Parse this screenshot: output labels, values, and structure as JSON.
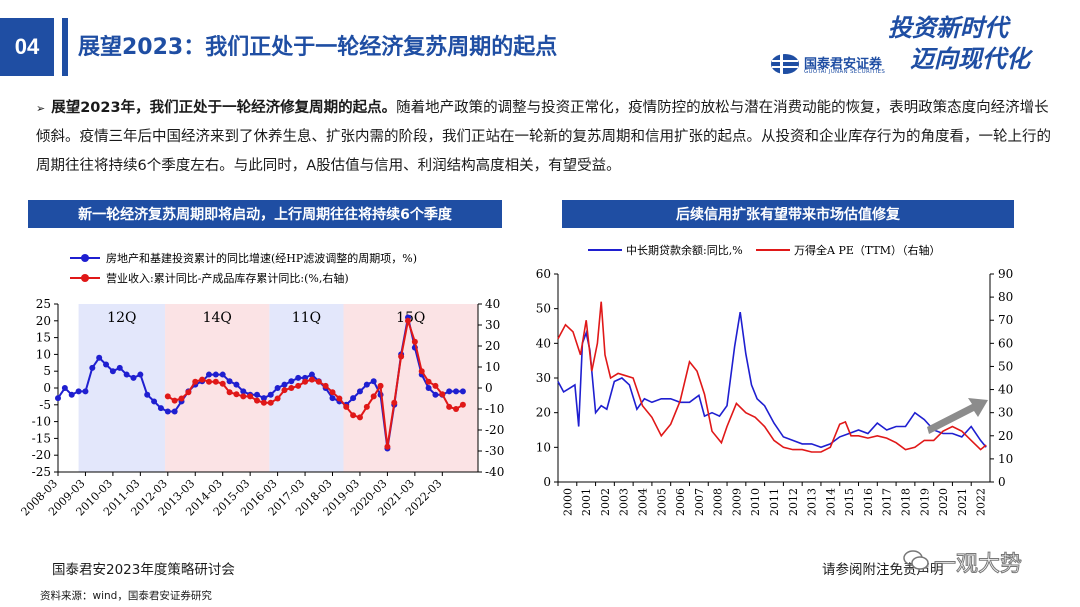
{
  "header": {
    "page_number": "04",
    "title": "展望2023：我们正处于一轮经济复苏周期的起点",
    "brand_cn": "国泰君安证券",
    "brand_en": "GUOTAI JUNAN SECURITIES",
    "slogan_line1": "投资新时代",
    "slogan_line2": "迈向现代化"
  },
  "body": {
    "bullet": "➢",
    "lead": "展望2023年，我们正处于一轮经济修复周期的起点。",
    "text": "随着地产政策的调整与投资正常化，疫情防控的放松与潜在消费动能的恢复，表明政策态度向经济增长倾斜。疫情三年后中国经济来到了休养生息、扩张内需的阶段，我们正站在一轮新的复苏周期和信用扩张的起点。从投资和企业库存行为的角度看，一轮上行的周期往往将持续6个季度左右。与此同时，A股估值与信用、利润结构高度相关，有望受益。"
  },
  "left_panel": {
    "banner": "新一轮经济复苏周期即将启动，上行周期往往将持续6个季度"
  },
  "right_panel": {
    "banner": "后续信用扩张有望带来市场估值修复"
  },
  "footer": {
    "event": "国泰君安2023年度策略研讨会",
    "source": "资料来源：wind，国泰君安证券研究",
    "disclaimer": "请参阅附注免责声明",
    "watermark": "一观大势"
  },
  "colors": {
    "brand": "#1f4ea3",
    "series_blue": "#1f1fd0",
    "series_red": "#e01818",
    "shade_blue": "#e3e7fb",
    "shade_red": "#fbe3e5"
  },
  "chart_data": [
    {
      "type": "line",
      "title": "新一轮经济复苏周期即将启动，上行周期往往将持续6个季度",
      "x_ticks": [
        "2008-03",
        "2009-03",
        "2010-03",
        "2011-03",
        "2012-03",
        "2013-03",
        "2014-03",
        "2015-03",
        "2016-03",
        "2017-03",
        "2018-03",
        "2019-03",
        "2020-03",
        "2021-03",
        "2022-03"
      ],
      "x_range": [
        2008.0,
        2023.3
      ],
      "ylim_left": [
        -25,
        25
      ],
      "yticks_left": [
        -25,
        -20,
        -15,
        -10,
        -5,
        0,
        5,
        10,
        15,
        20,
        25
      ],
      "ylim_right": [
        -40,
        40
      ],
      "yticks_right": [
        -40,
        -30,
        -20,
        -10,
        0,
        10,
        20,
        30,
        40
      ],
      "shaded_periods": [
        {
          "start": 2008.75,
          "end": 2011.9,
          "color": "blue",
          "label": "12Q"
        },
        {
          "start": 2011.9,
          "end": 2015.7,
          "color": "red",
          "label": "14Q"
        },
        {
          "start": 2015.7,
          "end": 2018.4,
          "color": "blue",
          "label": "11Q"
        },
        {
          "start": 2018.4,
          "end": 2023.3,
          "color": "red",
          "label": "15Q"
        }
      ],
      "series": [
        {
          "name": "房地产和基建投资累计的同比增速(经HP滤波调整的周期项，%)",
          "axis": "left",
          "color": "blue",
          "x": [
            2008.0,
            2008.25,
            2008.5,
            2008.75,
            2009.0,
            2009.25,
            2009.5,
            2009.75,
            2010.0,
            2010.25,
            2010.5,
            2010.75,
            2011.0,
            2011.25,
            2011.5,
            2011.75,
            2012.0,
            2012.25,
            2012.5,
            2012.75,
            2013.0,
            2013.25,
            2013.5,
            2013.75,
            2014.0,
            2014.25,
            2014.5,
            2014.75,
            2015.0,
            2015.25,
            2015.5,
            2015.75,
            2016.0,
            2016.25,
            2016.5,
            2016.75,
            2017.0,
            2017.25,
            2017.5,
            2017.75,
            2018.0,
            2018.25,
            2018.5,
            2018.75,
            2019.0,
            2019.25,
            2019.5,
            2019.75,
            2020.0,
            2020.25,
            2020.5,
            2020.75,
            2021.0,
            2021.25,
            2021.5,
            2021.75,
            2022.0,
            2022.25,
            2022.5,
            2022.75
          ],
          "values": [
            -3,
            0,
            -2,
            -1,
            -1,
            6,
            9,
            7,
            5,
            6,
            4,
            3,
            4,
            -2,
            -4,
            -6,
            -7,
            -7,
            -4,
            -1,
            1,
            2,
            4,
            4,
            4,
            2,
            1,
            -1,
            -2,
            -2,
            -3,
            -2,
            0,
            1,
            2,
            3,
            3,
            4,
            2,
            0,
            -3,
            -4,
            -5,
            -3,
            -1,
            1,
            2,
            -2,
            -18,
            -5,
            10,
            21,
            12,
            4,
            0,
            -2,
            -2,
            -1,
            -1,
            -1
          ]
        },
        {
          "name": "营业收入:累计同比-产成品库存累计同比:(%,右轴)",
          "axis": "right",
          "color": "red",
          "x": [
            2012.0,
            2012.25,
            2012.5,
            2012.75,
            2013.0,
            2013.25,
            2013.5,
            2013.75,
            2014.0,
            2014.25,
            2014.5,
            2014.75,
            2015.0,
            2015.25,
            2015.5,
            2015.75,
            2016.0,
            2016.25,
            2016.5,
            2016.75,
            2017.0,
            2017.25,
            2017.5,
            2017.75,
            2018.0,
            2018.25,
            2018.5,
            2018.75,
            2019.0,
            2019.25,
            2019.5,
            2019.75,
            2020.0,
            2020.25,
            2020.5,
            2020.75,
            2021.0,
            2021.25,
            2021.5,
            2021.75,
            2022.0,
            2022.25,
            2022.5,
            2022.75
          ],
          "values": [
            -4,
            -6,
            -5,
            -2,
            3,
            4,
            3,
            3,
            2,
            -2,
            -3,
            -4,
            -4,
            -6,
            -7,
            -7,
            -5,
            -1,
            0,
            1,
            3,
            4,
            3,
            1,
            -2,
            -5,
            -9,
            -13,
            -14,
            -9,
            -4,
            1,
            -28,
            -7,
            15,
            32,
            22,
            8,
            3,
            1,
            -3,
            -9,
            -10,
            -8
          ]
        }
      ]
    },
    {
      "type": "line",
      "title": "后续信用扩张有望带来市场估值修复",
      "x_ticks": [
        "2000",
        "2001",
        "2002",
        "2003",
        "2004",
        "2005",
        "2006",
        "2007",
        "2008",
        "2009",
        "2010",
        "2011",
        "2012",
        "2013",
        "2014",
        "2015",
        "2016",
        "2017",
        "2018",
        "2019",
        "2020",
        "2021",
        "2022"
      ],
      "x_range": [
        2000,
        2023
      ],
      "ylim_left": [
        0,
        60
      ],
      "yticks_left": [
        0,
        10,
        20,
        30,
        40,
        50,
        60
      ],
      "ylim_right": [
        0,
        90
      ],
      "yticks_right": [
        0,
        10,
        20,
        30,
        40,
        50,
        60,
        70,
        80,
        90
      ],
      "series": [
        {
          "name": "中长期贷款余额:同比,%",
          "axis": "left",
          "color": "blue",
          "x": [
            2000.0,
            2000.3,
            2000.6,
            2000.9,
            2001.1,
            2001.3,
            2001.5,
            2001.7,
            2002.0,
            2002.3,
            2002.6,
            2003.0,
            2003.4,
            2003.8,
            2004.2,
            2004.6,
            2005.0,
            2005.5,
            2006.0,
            2006.5,
            2007.0,
            2007.5,
            2007.8,
            2008.2,
            2008.6,
            2009.0,
            2009.4,
            2009.7,
            2010.0,
            2010.3,
            2010.6,
            2011.0,
            2011.5,
            2012.0,
            2012.5,
            2013.0,
            2013.5,
            2014.0,
            2014.5,
            2015.0,
            2015.5,
            2016.0,
            2016.5,
            2017.0,
            2017.5,
            2018.0,
            2018.5,
            2019.0,
            2019.5,
            2020.0,
            2020.5,
            2021.0,
            2021.5,
            2022.0,
            2022.5,
            2022.8
          ],
          "values": [
            29,
            26,
            27,
            28,
            16,
            40,
            43,
            38,
            20,
            22,
            21,
            29,
            30,
            28,
            21,
            24,
            23,
            24,
            24,
            23,
            23,
            25,
            19,
            20,
            19,
            22,
            39,
            49,
            37,
            28,
            24,
            22,
            17,
            13,
            12,
            11,
            11,
            10,
            11,
            13,
            14,
            15,
            14,
            17,
            15,
            16,
            16,
            20,
            18,
            15,
            14,
            14,
            13,
            16,
            12,
            10
          ]
        },
        {
          "name": "万得全A PE（TTM）（右轴）",
          "axis": "right",
          "color": "red",
          "x": [
            2000.0,
            2000.4,
            2000.8,
            2001.2,
            2001.5,
            2001.8,
            2002.1,
            2002.3,
            2002.5,
            2002.8,
            2003.2,
            2003.6,
            2004.0,
            2004.5,
            2005.0,
            2005.5,
            2006.0,
            2006.5,
            2007.0,
            2007.4,
            2007.8,
            2008.2,
            2008.7,
            2009.0,
            2009.5,
            2010.0,
            2010.5,
            2011.0,
            2011.5,
            2012.0,
            2012.5,
            2013.0,
            2013.5,
            2014.0,
            2014.5,
            2015.0,
            2015.3,
            2015.6,
            2016.0,
            2016.5,
            2017.0,
            2017.5,
            2018.0,
            2018.5,
            2019.0,
            2019.5,
            2020.0,
            2020.5,
            2021.0,
            2021.5,
            2022.0,
            2022.5,
            2022.8
          ],
          "values": [
            62,
            68,
            65,
            55,
            70,
            48,
            60,
            78,
            55,
            45,
            47,
            46,
            45,
            33,
            28,
            20,
            25,
            35,
            52,
            48,
            38,
            22,
            17,
            24,
            34,
            30,
            28,
            24,
            18,
            15,
            14,
            14,
            13,
            13,
            15,
            25,
            26,
            20,
            20,
            19,
            20,
            19,
            17,
            14,
            15,
            18,
            18,
            22,
            24,
            22,
            18,
            14,
            16
          ]
        }
      ],
      "annotation": "grey upward arrow near 2021-2022"
    }
  ]
}
